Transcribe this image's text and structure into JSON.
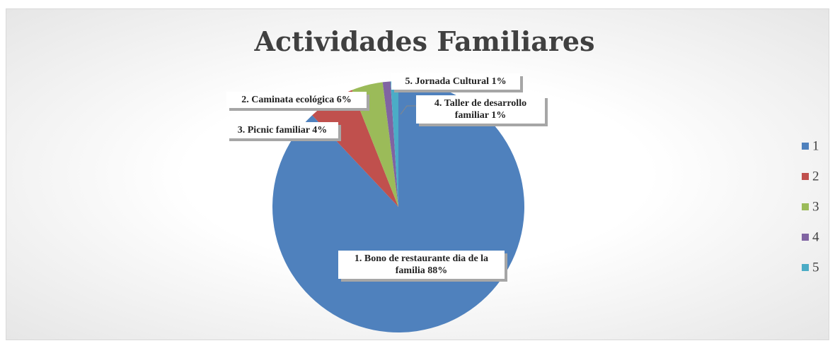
{
  "chart_data": {
    "type": "pie",
    "title": "Actividades Familiares",
    "categories": [
      "1",
      "2",
      "3",
      "4",
      "5"
    ],
    "values": [
      88,
      6,
      4,
      1,
      1
    ],
    "value_labels": [
      "88%",
      "6%",
      "4%",
      "1%",
      "1%"
    ],
    "data_labels": [
      "1. Bono de restaurante dia de la familia",
      "2. Caminata ecológica",
      "3. Picnic familiar",
      "4. Taller de desarrollo familiar",
      "5. Jornada Cultural"
    ],
    "colors": [
      "#4f81bd",
      "#c0504d",
      "#9bbb59",
      "#8064a2",
      "#4bacc6"
    ],
    "legend": "right"
  }
}
